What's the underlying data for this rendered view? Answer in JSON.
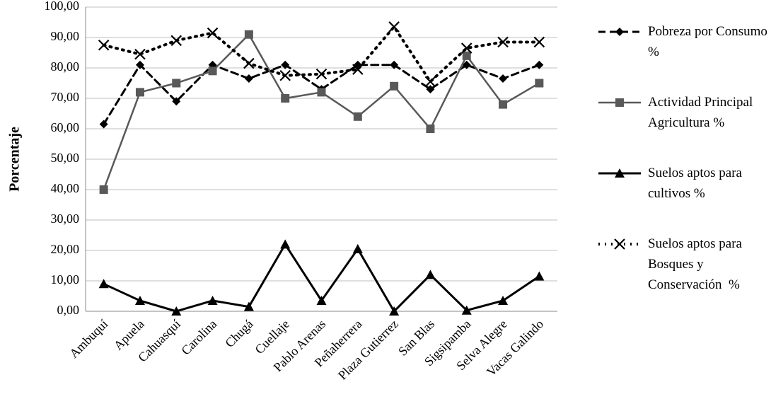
{
  "chart_data": {
    "type": "line",
    "y_label": "Porcentaje",
    "categories": [
      "Ambuquí",
      "Apuela",
      "Cahuasquí",
      "Carolina",
      "Chugá",
      "Cuellaje",
      "Pablo Arenas",
      "Peñaherrera",
      "Plaza Gutierrez",
      "San Blas",
      "Sigsipamba",
      "Selva Alegre",
      "Vacas Galindo"
    ],
    "series": [
      {
        "name": "Pobreza por Consumo %",
        "color": "#000000",
        "dash": "10,6",
        "marker": "diamond",
        "width": 3,
        "values": [
          61.5,
          81,
          69,
          81,
          76.5,
          81,
          73,
          81,
          81,
          73,
          81,
          76.5,
          81
        ]
      },
      {
        "name": "Actividad Principal Agricultura %",
        "color": "#595959",
        "dash": "none",
        "marker": "square",
        "width": 2.5,
        "values": [
          40,
          72,
          75,
          79,
          91,
          70,
          72,
          64,
          74,
          60,
          84,
          68,
          75
        ]
      },
      {
        "name": "Suelos aptos para cultivos %",
        "color": "#000000",
        "dash": "none",
        "marker": "triangle",
        "width": 3,
        "values": [
          9,
          3.5,
          0,
          3.5,
          1.5,
          22,
          3.5,
          20.5,
          0,
          12,
          0.3,
          3.5,
          11.5
        ]
      },
      {
        "name": "Suelos aptos para Bosques y Conservación  %",
        "color": "#000000",
        "dash": "2,7",
        "marker": "x",
        "width": 4,
        "values": [
          87.5,
          84.5,
          89,
          91.5,
          81.5,
          77.5,
          78,
          79.5,
          93.5,
          75.5,
          86.5,
          88.5,
          88.5
        ]
      }
    ],
    "ylim": [
      0,
      100
    ],
    "yticks": [
      {
        "value": 0,
        "label": "0,00"
      },
      {
        "value": 10,
        "label": "10,00"
      },
      {
        "value": 20,
        "label": "20,00"
      },
      {
        "value": 30,
        "label": "30,00"
      },
      {
        "value": 40,
        "label": "40,00"
      },
      {
        "value": 50,
        "label": "50,00"
      },
      {
        "value": 60,
        "label": "60,00"
      },
      {
        "value": 70,
        "label": "70,00"
      },
      {
        "value": 80,
        "label": "80,00"
      },
      {
        "value": 90,
        "label": "90,00"
      },
      {
        "value": 100,
        "label": "100,00"
      }
    ],
    "grid": true
  }
}
